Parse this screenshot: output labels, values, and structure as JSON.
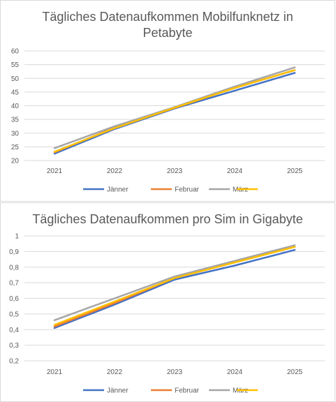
{
  "chart_data": [
    {
      "type": "line",
      "title_lines": [
        "Tägliches Datenaufkommen Mobilfunknetz in",
        "Petabyte"
      ],
      "categories": [
        "2021",
        "2022",
        "2023",
        "2024",
        "2025"
      ],
      "ylim": [
        20,
        60
      ],
      "yticks": [
        "20",
        "25",
        "30",
        "35",
        "40",
        "45",
        "50",
        "55",
        "60"
      ],
      "grid": true,
      "legend_position": "bottom",
      "series": [
        {
          "name": "Jänner",
          "color": "#4472C4",
          "values": [
            22.5,
            31.5,
            39,
            45.5,
            52
          ]
        },
        {
          "name": "Februar",
          "color": "#ED7D31",
          "values": [
            23,
            32,
            39.2,
            46.5,
            53
          ]
        },
        {
          "name": "März",
          "color": "#A5A5A5",
          "values": [
            24.5,
            32.5,
            39.5,
            47,
            54
          ]
        },
        {
          "name": "",
          "color": "#FFC000",
          "values": [
            23.2,
            31.8,
            39.3,
            46.5,
            53
          ]
        }
      ]
    },
    {
      "type": "line",
      "title_lines": [
        "Tägliches Datenaufkommen pro Sim in Gigabyte"
      ],
      "categories": [
        "2021",
        "2022",
        "2023",
        "2024",
        "2025"
      ],
      "ylim": [
        0.2,
        1
      ],
      "yticks": [
        "0,2",
        "0,3",
        "0,4",
        "0,5",
        "0,6",
        "0,7",
        "0,8",
        "0,9",
        "1"
      ],
      "grid": true,
      "legend_position": "bottom",
      "series": [
        {
          "name": "Jänner",
          "color": "#4472C4",
          "values": [
            0.41,
            0.56,
            0.72,
            0.81,
            0.91
          ]
        },
        {
          "name": "Februar",
          "color": "#ED7D31",
          "values": [
            0.42,
            0.57,
            0.73,
            0.83,
            0.93
          ]
        },
        {
          "name": "März",
          "color": "#A5A5A5",
          "values": [
            0.46,
            0.6,
            0.74,
            0.84,
            0.94
          ]
        },
        {
          "name": "",
          "color": "#FFC000",
          "values": [
            0.43,
            0.58,
            0.73,
            0.83,
            0.93
          ]
        }
      ]
    }
  ]
}
